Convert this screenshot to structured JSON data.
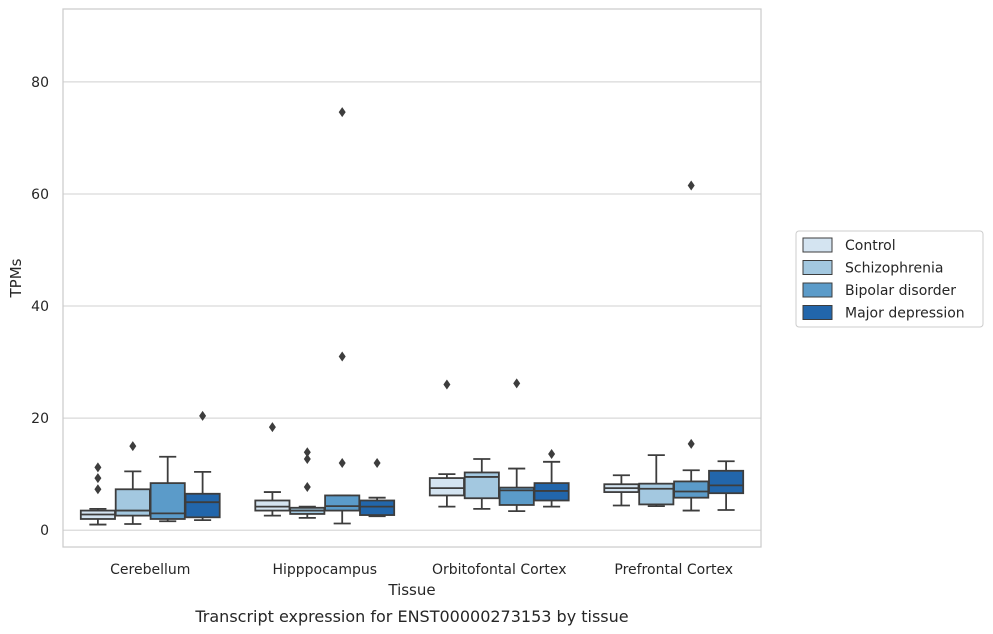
{
  "chart_data": {
    "type": "box",
    "title": "Transcript expression for ENST00000273153 by tissue",
    "xlabel": "Tissue",
    "ylabel": "TPMs",
    "ylim": [
      -3,
      93
    ],
    "yticks": [
      0,
      20,
      40,
      60,
      80
    ],
    "grid": true,
    "legend_position": "right",
    "categories": [
      "Cerebellum",
      "Hipppocampus",
      "Orbitofontal Cortex",
      "Prefrontal Cortex"
    ],
    "series": [
      {
        "name": "Control",
        "color": "#d4e4f1",
        "boxes": [
          {
            "whislo": 1.0,
            "q1": 2.0,
            "med": 2.8,
            "q3": 3.5,
            "whishi": 3.8,
            "fliers": [
              7.3,
              9.3,
              11.2
            ]
          },
          {
            "whislo": 2.6,
            "q1": 3.5,
            "med": 4.2,
            "q3": 5.3,
            "whishi": 6.8,
            "fliers": [
              18.4
            ]
          },
          {
            "whislo": 4.2,
            "q1": 6.2,
            "med": 7.5,
            "q3": 9.3,
            "whishi": 10.0,
            "fliers": [
              26.0
            ]
          },
          {
            "whislo": 4.4,
            "q1": 6.8,
            "med": 7.5,
            "q3": 8.2,
            "whishi": 9.8,
            "fliers": []
          }
        ]
      },
      {
        "name": "Schizophrenia",
        "color": "#a3c8e0",
        "boxes": [
          {
            "whislo": 1.1,
            "q1": 2.6,
            "med": 3.5,
            "q3": 7.3,
            "whishi": 10.5,
            "fliers": [
              15.0
            ]
          },
          {
            "whislo": 2.2,
            "q1": 2.9,
            "med": 3.5,
            "q3": 4.0,
            "whishi": 4.2,
            "fliers": [
              7.7,
              12.7,
              13.9
            ]
          },
          {
            "whislo": 3.8,
            "q1": 5.7,
            "med": 9.5,
            "q3": 10.3,
            "whishi": 12.7,
            "fliers": []
          },
          {
            "whislo": 4.3,
            "q1": 4.6,
            "med": 7.4,
            "q3": 8.3,
            "whishi": 13.4,
            "fliers": []
          }
        ]
      },
      {
        "name": "Bipolar disorder",
        "color": "#5b9bc9",
        "boxes": [
          {
            "whislo": 1.6,
            "q1": 2.0,
            "med": 3.0,
            "q3": 8.4,
            "whishi": 13.1,
            "fliers": []
          },
          {
            "whislo": 1.2,
            "q1": 3.5,
            "med": 4.3,
            "q3": 6.2,
            "whishi": 6.2,
            "fliers": [
              12.0,
              31.0,
              74.6
            ]
          },
          {
            "whislo": 3.4,
            "q1": 4.5,
            "med": 7.1,
            "q3": 7.6,
            "whishi": 11.0,
            "fliers": [
              26.2
            ]
          },
          {
            "whislo": 3.5,
            "q1": 5.8,
            "med": 6.9,
            "q3": 8.7,
            "whishi": 10.7,
            "fliers": [
              15.4,
              61.5
            ]
          }
        ]
      },
      {
        "name": "Major depression",
        "color": "#2266ab",
        "boxes": [
          {
            "whislo": 1.8,
            "q1": 2.3,
            "med": 5.0,
            "q3": 6.5,
            "whishi": 10.4,
            "fliers": [
              20.4
            ]
          },
          {
            "whislo": 2.5,
            "q1": 2.7,
            "med": 4.2,
            "q3": 5.3,
            "whishi": 5.8,
            "fliers": [
              12.0
            ]
          },
          {
            "whislo": 4.2,
            "q1": 5.3,
            "med": 7.0,
            "q3": 8.4,
            "whishi": 12.2,
            "fliers": [
              13.6
            ]
          },
          {
            "whislo": 3.6,
            "q1": 6.6,
            "med": 8.0,
            "q3": 10.6,
            "whishi": 12.3,
            "fliers": []
          }
        ]
      }
    ]
  }
}
